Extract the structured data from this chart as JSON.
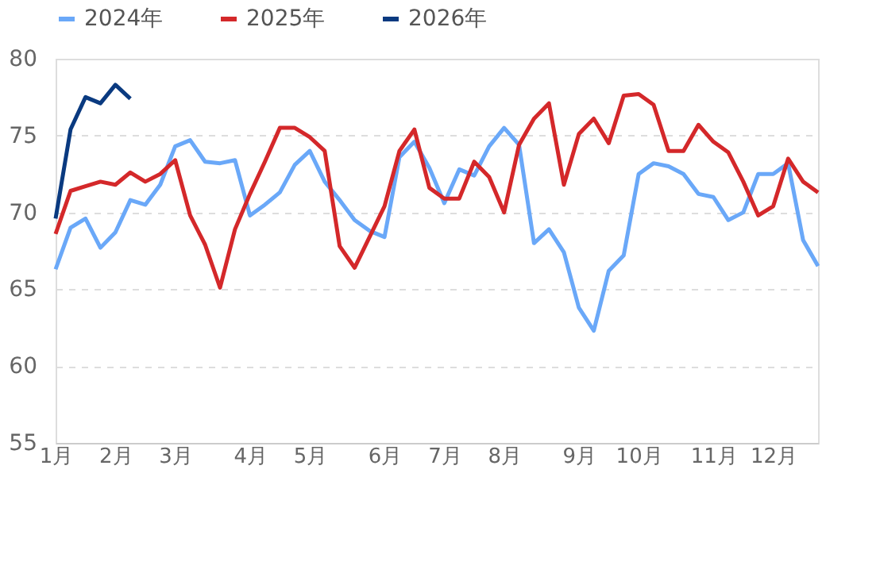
{
  "chart_data": {
    "type": "line",
    "categories": [
      "1月",
      null,
      null,
      null,
      "2月",
      null,
      null,
      null,
      "3月",
      null,
      null,
      null,
      null,
      "4月",
      null,
      null,
      null,
      "5月",
      null,
      null,
      null,
      null,
      "6月",
      null,
      null,
      null,
      "7月",
      null,
      null,
      null,
      "8月",
      null,
      null,
      null,
      null,
      "9月",
      null,
      null,
      null,
      "10月",
      null,
      null,
      null,
      null,
      "11月",
      null,
      null,
      null,
      "12月",
      null,
      null,
      null
    ],
    "series": [
      {
        "name": "2024年",
        "color": "#6aa8f8",
        "values": [
          66.3,
          69.0,
          69.6,
          67.7,
          68.7,
          70.8,
          70.5,
          71.8,
          74.3,
          74.7,
          73.3,
          73.2,
          73.4,
          69.8,
          70.5,
          71.3,
          73.1,
          74.0,
          72.0,
          70.8,
          69.5,
          68.8,
          68.4,
          73.6,
          74.6,
          72.9,
          70.6,
          72.8,
          72.4,
          74.3,
          75.5,
          74.4,
          68.0,
          68.9,
          67.4,
          63.8,
          62.3,
          66.2,
          67.2,
          72.5,
          73.2,
          73.0,
          72.5,
          71.2,
          71.0,
          69.5,
          70.0,
          72.5,
          72.5,
          73.2,
          68.2,
          66.5
        ]
      },
      {
        "name": "2025年",
        "color": "#d4282a",
        "values": [
          68.6,
          71.4,
          71.7,
          72.0,
          71.8,
          72.6,
          72.0,
          72.5,
          73.4,
          69.8,
          67.9,
          65.1,
          68.9,
          71.2,
          73.3,
          75.5,
          75.5,
          74.9,
          74.0,
          67.8,
          66.4,
          68.4,
          70.4,
          74.0,
          75.4,
          71.6,
          70.9,
          70.9,
          73.3,
          72.3,
          70.0,
          74.4,
          76.1,
          77.1,
          71.8,
          75.1,
          76.1,
          74.5,
          77.6,
          77.7,
          77.0,
          74.0,
          74.0,
          75.7,
          74.6,
          73.9,
          72.0,
          69.8,
          70.4,
          73.5,
          72.0,
          71.3
        ]
      },
      {
        "name": "2026年",
        "color": "#0a3a80",
        "values": [
          69.6,
          75.4,
          77.5,
          77.1,
          78.3,
          77.4,
          null,
          null,
          null,
          null,
          null,
          null,
          null,
          null,
          null,
          null,
          null,
          null,
          null,
          null,
          null,
          null,
          null,
          null,
          null,
          null,
          null,
          null,
          null,
          null,
          null,
          null,
          null,
          null,
          null,
          null,
          null,
          null,
          null,
          null,
          null,
          null,
          null,
          null,
          null,
          null,
          null,
          null,
          null,
          null,
          null,
          null
        ]
      }
    ],
    "ylim": [
      55,
      80
    ],
    "yticks": [
      55,
      60,
      65,
      70,
      75,
      80
    ],
    "grid": "y",
    "legend": "top",
    "marker": "none",
    "line_style": "solid"
  }
}
